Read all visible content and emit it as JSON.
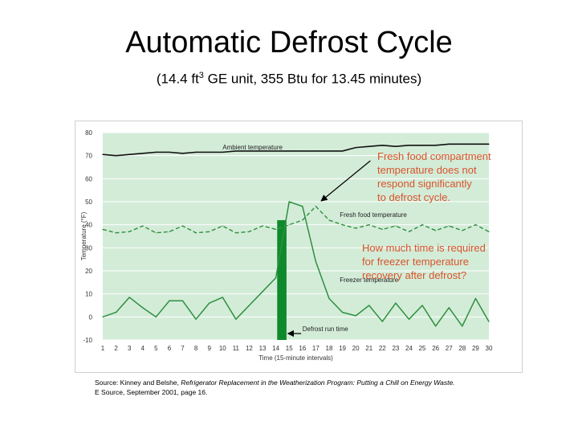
{
  "title": "Automatic Defrost Cycle",
  "subtitle": {
    "before_sup": "(14.4 ft",
    "sup": "3",
    "after_sup": " GE unit, 355 Btu for 13.45 minutes)"
  },
  "annotations": {
    "fresh_food_note": [
      "Fresh food compartment",
      "temperature does not",
      "respond significantly",
      "to defrost cycle."
    ],
    "freezer_note": [
      "How much time is required",
      "for freezer temperature",
      "recovery after defrost?"
    ]
  },
  "source": {
    "line1_prefix": "Source: Kinney and Belshe, ",
    "line1_italic": "Refrigerator Replacement in the Weatherization Program: Putting a Chill on Energy Waste.",
    "line2": "E Source, September 2001, page 16."
  },
  "colors": {
    "plot_bg": "#d3ecd8",
    "grid": "#ffffff",
    "line": "#2f8f3f",
    "ambient_line": "#111111",
    "defrost_bar": "#0e8a2c",
    "annotation_text": "#d9532b",
    "arrow": "#000000"
  },
  "chart_data": {
    "type": "line",
    "xlabel": "Time (15-minute intervals)",
    "ylabel": "Temperature (°F)",
    "x": [
      1,
      2,
      3,
      4,
      5,
      6,
      7,
      8,
      9,
      10,
      11,
      12,
      13,
      14,
      15,
      16,
      17,
      18,
      19,
      20,
      21,
      22,
      23,
      24,
      25,
      26,
      27,
      28,
      29,
      30
    ],
    "xlim": [
      1,
      30
    ],
    "ylim": [
      -10,
      80
    ],
    "y_ticks": [
      80,
      70,
      60,
      50,
      40,
      30,
      20,
      10,
      0,
      -10
    ],
    "y_tick_labels": [
      "80",
      "70",
      "60",
      "50",
      "40",
      "30",
      "20",
      "10",
      "0",
      "-10"
    ],
    "grid": true,
    "series": [
      {
        "name": "Ambient temperature",
        "style": "solid-black",
        "x": [
          1,
          2,
          3,
          4,
          5,
          6,
          7,
          8,
          9,
          10,
          11,
          12,
          13,
          14,
          15,
          16,
          17,
          18,
          19,
          20,
          21,
          22,
          23,
          24,
          25,
          26,
          27,
          28,
          29,
          30
        ],
        "values": [
          70.5,
          70,
          70.5,
          71,
          71.5,
          71.5,
          71,
          71.5,
          71.5,
          71.5,
          72,
          72,
          72,
          72,
          72,
          72,
          72,
          72,
          72,
          73.5,
          74,
          74.5,
          74,
          74.5,
          74.5,
          74.5,
          75,
          75,
          75,
          75
        ]
      },
      {
        "name": "Fresh food temperature",
        "style": "dashed-green",
        "x": [
          1,
          2,
          3,
          4,
          5,
          6,
          7,
          8,
          9,
          10,
          11,
          12,
          13,
          14,
          15,
          16,
          17,
          18,
          19,
          20,
          21,
          22,
          23,
          24,
          25,
          26,
          27,
          28,
          29,
          30
        ],
        "values": [
          38,
          36.5,
          37,
          39.5,
          36.5,
          37,
          39.5,
          36.5,
          37,
          39.5,
          36.5,
          37,
          39.5,
          38,
          40,
          42,
          48,
          42,
          40,
          38.5,
          40,
          38,
          39.5,
          37,
          40,
          37.5,
          39.5,
          37.5,
          40,
          37
        ]
      },
      {
        "name": "Freezer temperature",
        "style": "solid-green",
        "x": [
          1,
          2,
          3,
          4,
          5,
          6,
          7,
          8,
          9,
          10,
          11,
          12,
          13,
          14,
          15,
          16,
          17,
          18,
          19,
          20,
          21,
          22,
          23,
          24,
          25,
          26,
          27,
          28,
          29,
          30
        ],
        "values": [
          0,
          2,
          8.5,
          4,
          0,
          7,
          7,
          -1,
          6,
          8.5,
          -1,
          5,
          11,
          17,
          50,
          48,
          24,
          8,
          2,
          0.5,
          5,
          -2,
          6,
          -1,
          5,
          -4,
          4,
          -4,
          8,
          -2
        ]
      }
    ],
    "defrost_bar": {
      "label": "Defrost run time",
      "x_start": 14.1,
      "x_end": 14.8,
      "y_top": 42,
      "y_bottom": -10
    },
    "series_labels": {
      "ambient": "Ambient temperature",
      "fresh": "Fresh food temperature",
      "freezer": "Freezer temperature",
      "defrost": "Defrost run time"
    }
  }
}
